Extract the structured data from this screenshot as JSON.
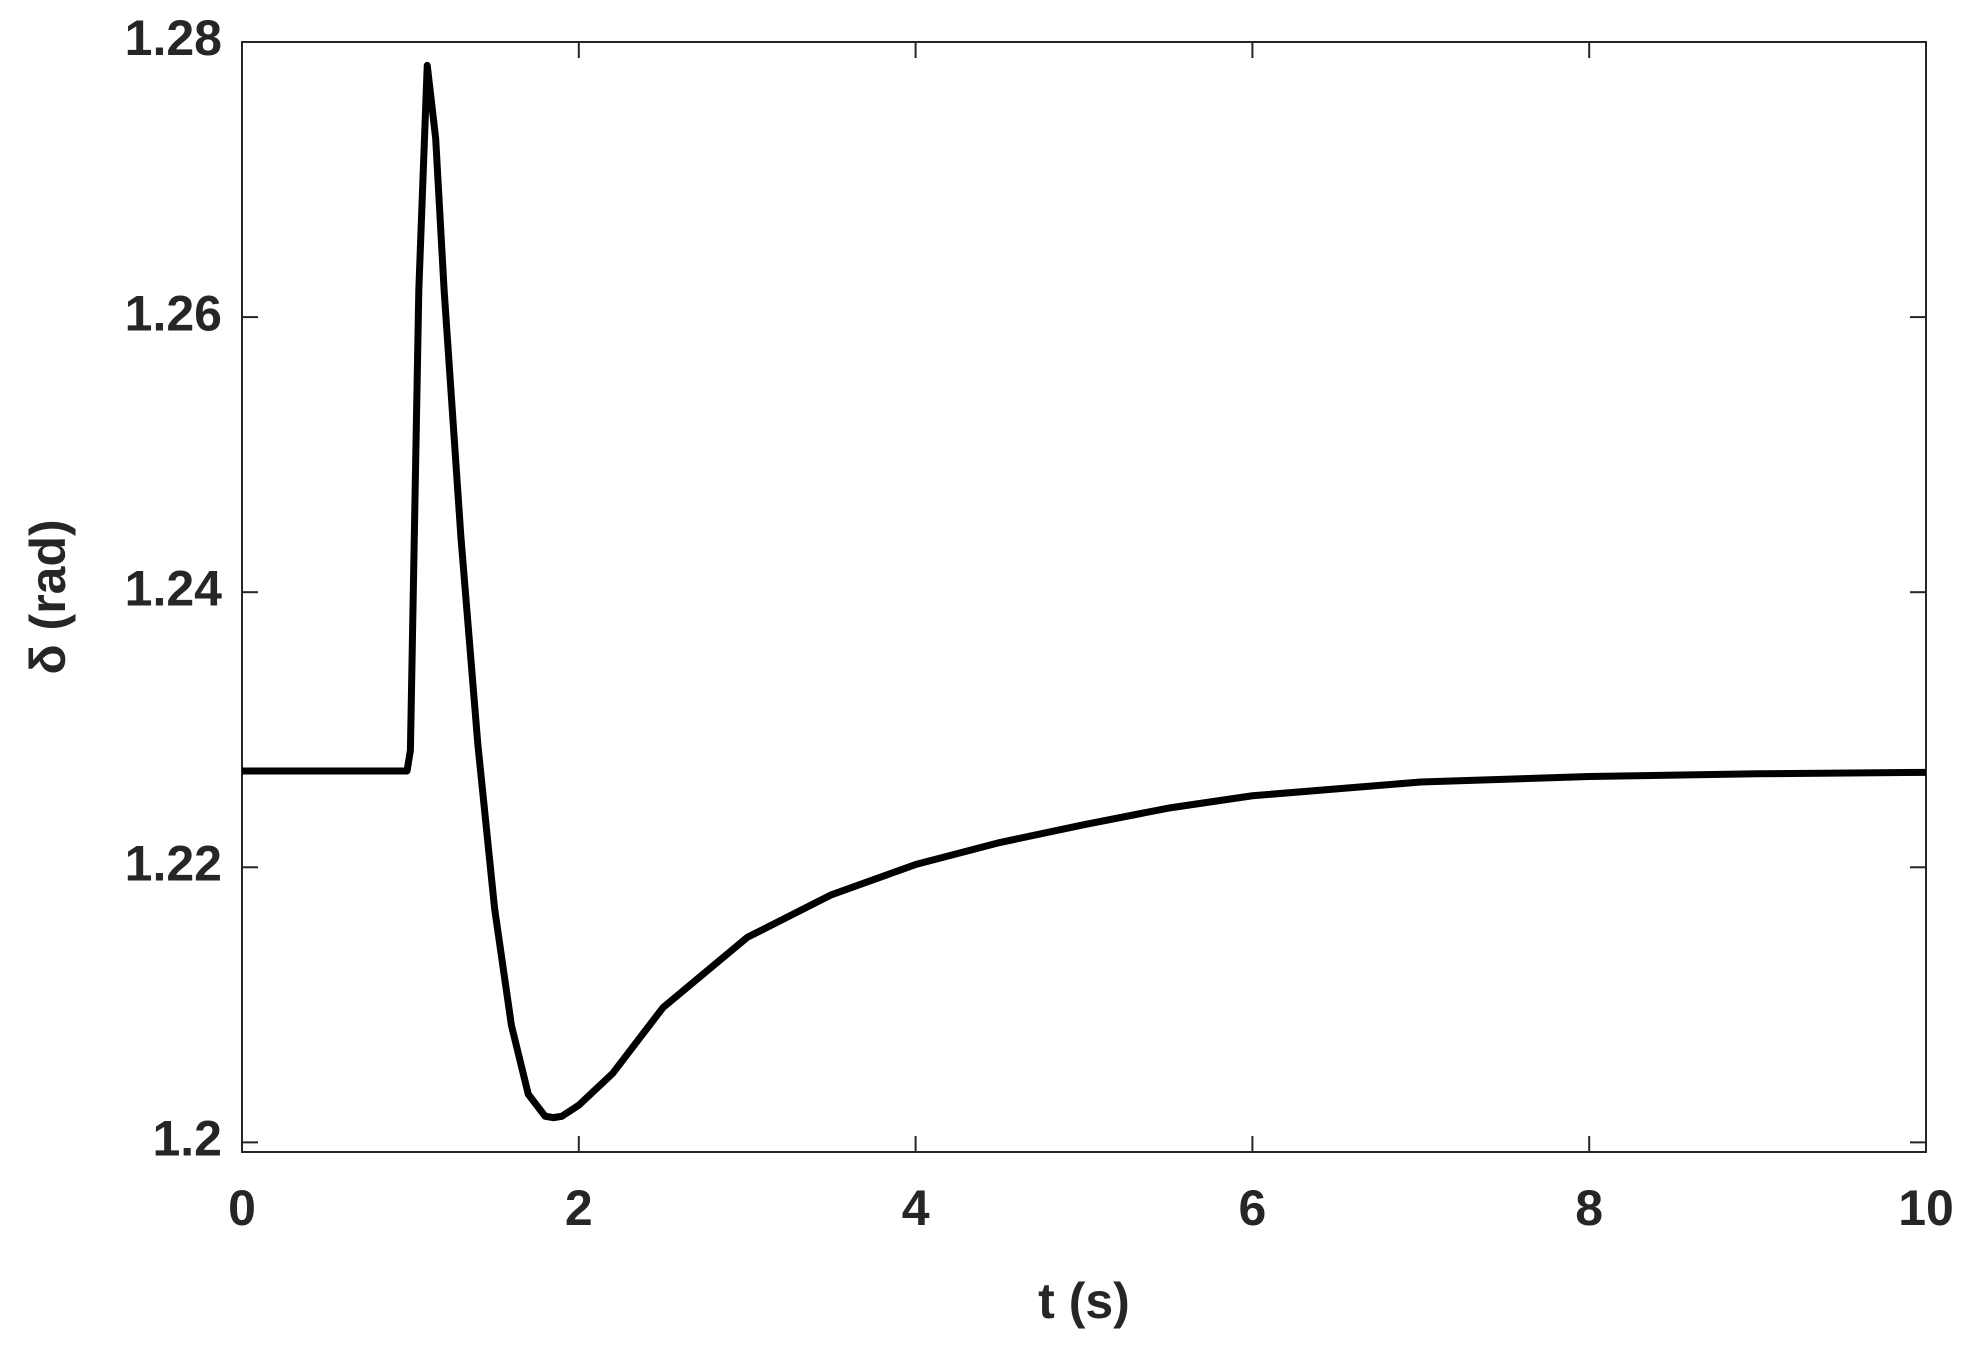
{
  "chart_data": {
    "type": "line",
    "xlabel": "t (s)",
    "ylabel": "δ (rad)",
    "x": [
      0,
      0.98,
      1.0,
      1.05,
      1.1,
      1.15,
      1.2,
      1.3,
      1.4,
      1.5,
      1.6,
      1.7,
      1.8,
      1.85,
      1.9,
      2.0,
      2.2,
      2.5,
      3.0,
      3.5,
      4.0,
      4.5,
      5,
      5.5,
      6,
      7,
      8,
      9,
      10
    ],
    "series": [
      {
        "color": "#000000",
        "values": [
          1.227,
          1.227,
          1.2285,
          1.262,
          1.2783,
          1.273,
          1.262,
          1.244,
          1.229,
          1.217,
          1.2085,
          1.2035,
          1.2019,
          1.2018,
          1.2019,
          1.2027,
          1.205,
          1.2098,
          1.2149,
          1.218,
          1.2202,
          1.2218,
          1.2231,
          1.2243,
          1.2252,
          1.2262,
          1.2266,
          1.2268,
          1.2269
        ]
      }
    ],
    "xlim": [
      0,
      10
    ],
    "xticks": [
      0,
      2,
      4,
      6,
      8,
      10
    ],
    "ylim": [
      1.1993,
      1.28
    ],
    "yticks": [
      1.2,
      1.22,
      1.24,
      1.26,
      1.28
    ]
  }
}
